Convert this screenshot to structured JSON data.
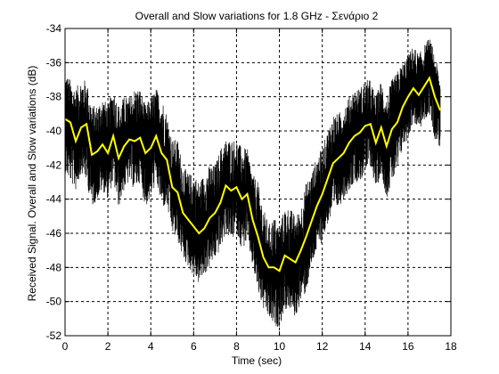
{
  "chart_data": {
    "type": "line",
    "title": "Overall and Slow variations for 1.8 GHz - Σενάριο 2",
    "xlabel": "Time (sec)",
    "ylabel": "Received Signal. Overall and Slow variations (dB)",
    "xlim": [
      0,
      18
    ],
    "ylim": [
      -52,
      -34
    ],
    "xticks": [
      0,
      2,
      4,
      6,
      8,
      10,
      12,
      14,
      16,
      18
    ],
    "yticks": [
      -52,
      -50,
      -48,
      -46,
      -44,
      -42,
      -40,
      -38,
      -36,
      -34
    ],
    "grid": "dashed",
    "series": [
      {
        "color": "#000000",
        "x": [
          0,
          0.25,
          0.5,
          0.75,
          1.0,
          1.25,
          1.5,
          1.75,
          2.0,
          2.25,
          2.5,
          2.75,
          3.0,
          3.25,
          3.5,
          3.75,
          4.0,
          4.25,
          4.5,
          4.75,
          5.0,
          5.25,
          5.5,
          5.75,
          6.0,
          6.25,
          6.5,
          6.75,
          7.0,
          7.25,
          7.5,
          7.75,
          8.0,
          8.25,
          8.5,
          8.75,
          9.0,
          9.25,
          9.5,
          9.75,
          10.0,
          10.25,
          10.5,
          10.75,
          11.0,
          11.25,
          11.5,
          11.75,
          12.0,
          12.25,
          12.5,
          12.75,
          13.0,
          13.25,
          13.5,
          13.75,
          14.0,
          14.25,
          14.5,
          14.75,
          15.0,
          15.25,
          15.5,
          15.75,
          16.0,
          16.25,
          16.5,
          16.75,
          17.0,
          17.25,
          17.5
        ],
        "y_min": [
          -42.5,
          -43.0,
          -43.5,
          -42.5,
          -43.0,
          -44.5,
          -44.0,
          -43.5,
          -44.0,
          -43.0,
          -44.5,
          -43.5,
          -43.0,
          -43.5,
          -43.0,
          -44.5,
          -44.0,
          -43.0,
          -44.5,
          -44.5,
          -46.0,
          -46.5,
          -47.5,
          -48.0,
          -48.5,
          -49.0,
          -48.5,
          -48.0,
          -47.5,
          -47.0,
          -46.0,
          -46.5,
          -46.0,
          -47.0,
          -46.5,
          -48.0,
          -49.5,
          -50.5,
          -51.0,
          -51.5,
          -51.5,
          -50.5,
          -50.5,
          -51.0,
          -50.0,
          -49.5,
          -48.0,
          -47.0,
          -46.5,
          -45.5,
          -45.0,
          -44.5,
          -44.0,
          -43.5,
          -43.0,
          -43.0,
          -42.5,
          -42.0,
          -43.5,
          -42.5,
          -44.0,
          -43.0,
          -42.5,
          -41.0,
          -40.5,
          -39.5,
          -40.0,
          -39.5,
          -39.0,
          -40.5,
          -41.0
        ],
        "y_max": [
          -36.5,
          -37.0,
          -37.5,
          -37.0,
          -37.0,
          -38.5,
          -38.5,
          -38.0,
          -38.5,
          -37.5,
          -38.5,
          -38.0,
          -38.0,
          -37.5,
          -37.5,
          -38.5,
          -38.0,
          -37.5,
          -38.0,
          -39.0,
          -40.5,
          -40.5,
          -42.0,
          -42.5,
          -42.5,
          -43.0,
          -42.5,
          -42.0,
          -42.0,
          -41.0,
          -40.5,
          -40.5,
          -40.5,
          -41.0,
          -41.0,
          -42.5,
          -43.0,
          -44.5,
          -45.5,
          -45.0,
          -45.5,
          -44.5,
          -44.5,
          -45.0,
          -44.5,
          -43.0,
          -42.5,
          -41.5,
          -41.0,
          -40.0,
          -39.0,
          -39.0,
          -38.5,
          -38.0,
          -37.5,
          -37.5,
          -37.0,
          -37.0,
          -38.0,
          -37.0,
          -38.0,
          -37.0,
          -36.5,
          -36.0,
          -35.5,
          -35.0,
          -35.5,
          -35.0,
          -34.5,
          -35.5,
          -37.0
        ]
      },
      {
        "color": "#ffff00",
        "x": [
          0,
          0.25,
          0.5,
          0.75,
          1.0,
          1.25,
          1.5,
          1.75,
          2.0,
          2.25,
          2.5,
          2.75,
          3.0,
          3.25,
          3.5,
          3.75,
          4.0,
          4.25,
          4.5,
          4.75,
          5.0,
          5.25,
          5.5,
          5.75,
          6.0,
          6.25,
          6.5,
          6.75,
          7.0,
          7.25,
          7.5,
          7.75,
          8.0,
          8.25,
          8.5,
          8.75,
          9.0,
          9.25,
          9.5,
          9.75,
          10.0,
          10.25,
          10.5,
          10.75,
          11.0,
          11.25,
          11.5,
          11.75,
          12.0,
          12.25,
          12.5,
          12.75,
          13.0,
          13.25,
          13.5,
          13.75,
          14.0,
          14.25,
          14.5,
          14.75,
          15.0,
          15.25,
          15.5,
          15.75,
          16.0,
          16.25,
          16.5,
          16.75,
          17.0,
          17.25,
          17.5
        ],
        "y": [
          -39.3,
          -39.5,
          -40.6,
          -39.8,
          -39.6,
          -41.4,
          -41.2,
          -40.8,
          -41.3,
          -40.3,
          -41.6,
          -40.9,
          -40.5,
          -40.6,
          -40.4,
          -41.3,
          -41.0,
          -40.3,
          -41.3,
          -41.7,
          -43.3,
          -43.6,
          -44.8,
          -45.2,
          -45.6,
          -46.0,
          -45.7,
          -45.1,
          -44.8,
          -44.2,
          -43.2,
          -43.5,
          -43.3,
          -44.0,
          -43.7,
          -45.2,
          -46.2,
          -47.4,
          -48.0,
          -48.0,
          -48.2,
          -47.3,
          -47.5,
          -47.7,
          -47.0,
          -46.2,
          -45.3,
          -44.4,
          -43.7,
          -42.8,
          -41.9,
          -41.6,
          -41.3,
          -40.7,
          -40.3,
          -40.1,
          -39.7,
          -39.6,
          -40.7,
          -39.8,
          -40.9,
          -39.9,
          -39.5,
          -38.6,
          -38.0,
          -37.5,
          -37.9,
          -37.4,
          -36.9,
          -38.0,
          -38.8
        ]
      }
    ]
  }
}
